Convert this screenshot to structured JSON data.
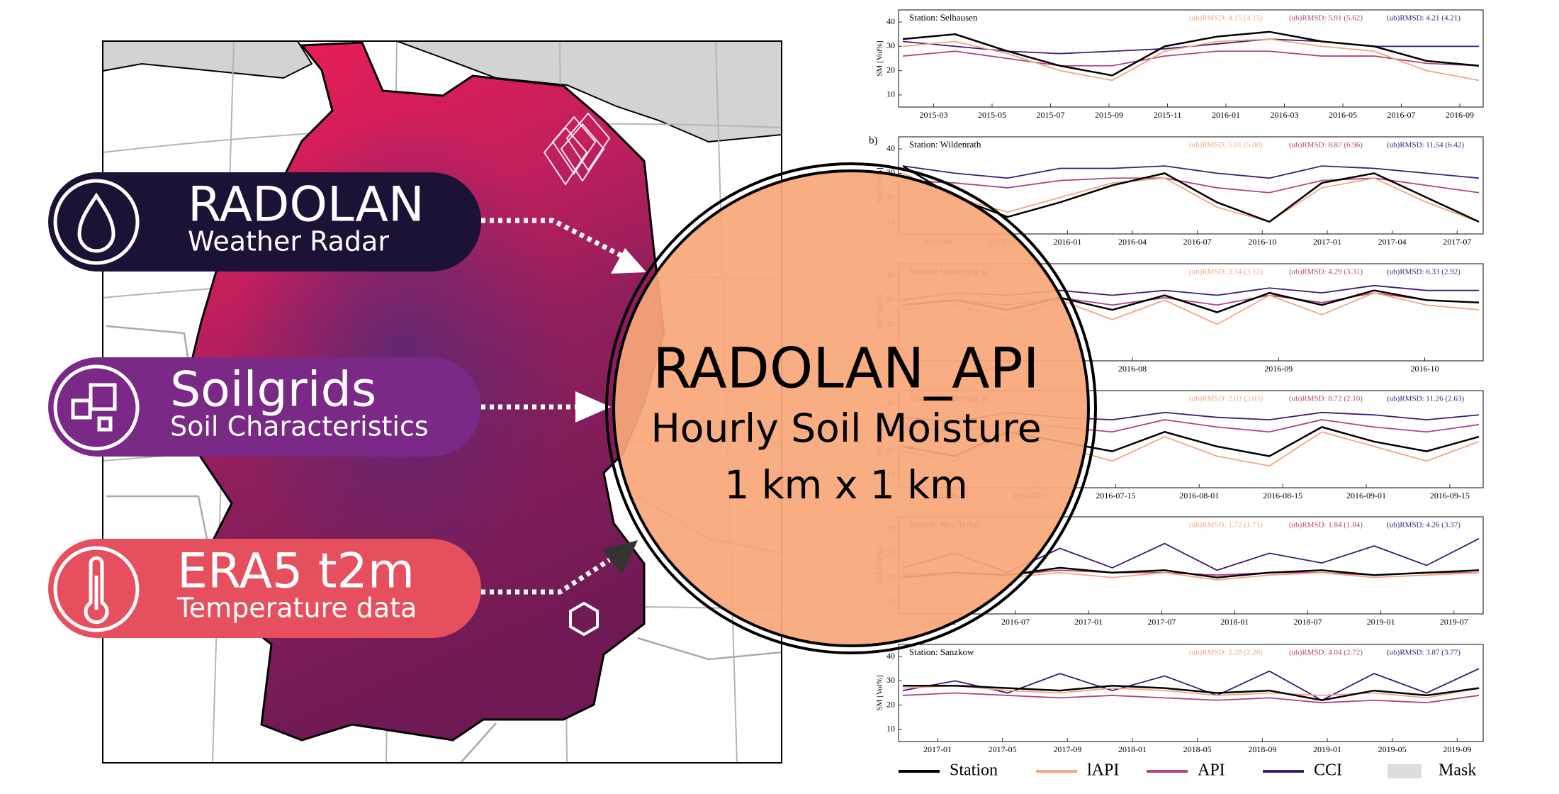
{
  "inputs": [
    {
      "title": "RADOLAN",
      "subtitle": "Weather Radar",
      "color": "#1c1236"
    },
    {
      "title": "Soilgrids",
      "subtitle": "Soil Characteristics",
      "color": "#7a2a86"
    },
    {
      "title": "ERA5 t2m",
      "subtitle": "Temperature data",
      "color": "#e6505e"
    }
  ],
  "output": {
    "title": "RADOLAN_API",
    "lines": [
      "Hourly Soil Moisture",
      "1 km x 1 km"
    ]
  },
  "legend": [
    {
      "name": "Station",
      "color": "#000000"
    },
    {
      "name": "lAPI",
      "color": "#f4a582"
    },
    {
      "name": "API",
      "color": "#b2447e"
    },
    {
      "name": "CCI",
      "color": "#3d1a78"
    },
    {
      "name": "Mask",
      "color": "#dddddd"
    }
  ],
  "ylabel": "SM [Vol%]",
  "ylim": [
    5,
    45
  ],
  "yticks": [
    10,
    20,
    30,
    40
  ],
  "panels": [
    {
      "station": "Station: Selhausen",
      "rmsd": [
        "(ub)RMSD: 4.15 (4.15)",
        "(ub)RMSD: 5.91 (5.62)",
        "(ub)RMSD: 4.21 (4.21)"
      ],
      "xticks": [
        "2015-03",
        "2015-05",
        "2015-07",
        "2015-09",
        "2015-11",
        "2016-01",
        "2016-03",
        "2016-05",
        "2016-07",
        "2016-09"
      ],
      "values": [
        [
          33,
          35,
          28,
          22,
          18,
          30,
          34,
          36,
          32,
          30,
          24,
          22
        ],
        [
          30,
          32,
          27,
          20,
          16,
          28,
          32,
          33,
          30,
          28,
          20,
          16
        ],
        [
          26,
          28,
          25,
          22,
          22,
          26,
          28,
          28,
          26,
          26,
          23,
          22
        ],
        [
          32,
          30,
          28,
          27,
          28,
          29,
          31,
          33,
          32,
          30,
          30,
          30
        ]
      ]
    },
    {
      "label": "b)",
      "station": "Station: Wildenrath",
      "rmsd": [
        "(ub)RMSD: 5.01 (5.00)",
        "(ub)RMSD: 8.87 (6.96)",
        "(ub)RMSD: 11.54 (6.42)"
      ],
      "xticks": [
        "2015-04",
        "2015-10",
        "2016-01",
        "2016-04",
        "2016-07",
        "2016-10",
        "2017-01",
        "2017-04",
        "2017-07"
      ],
      "values": [
        [
          33,
          20,
          12,
          18,
          25,
          30,
          18,
          10,
          26,
          30,
          20,
          10
        ],
        [
          30,
          20,
          14,
          20,
          26,
          28,
          16,
          10,
          24,
          28,
          18,
          10
        ],
        [
          27,
          26,
          24,
          27,
          28,
          28,
          24,
          22,
          27,
          28,
          25,
          22
        ],
        [
          33,
          30,
          28,
          32,
          32,
          33,
          30,
          28,
          33,
          32,
          30,
          28
        ]
      ]
    },
    {
      "station": "Station: Wallerfing a2",
      "rmsd": [
        "(ub)RMSD: 3.14 (3.12)",
        "(ub)RMSD: 4.29 (3.31)",
        "(ub)RMSD: 6.33 (2.92)"
      ],
      "xticks": [
        "2016-07",
        "2016-08",
        "2016-09",
        "2016-10"
      ],
      "values": [
        [
          28,
          30,
          26,
          31,
          26,
          32,
          25,
          33,
          28,
          34,
          30,
          29
        ],
        [
          26,
          28,
          22,
          30,
          22,
          30,
          20,
          32,
          24,
          33,
          28,
          26
        ],
        [
          28,
          30,
          28,
          31,
          28,
          31,
          28,
          32,
          29,
          33,
          30,
          29
        ],
        [
          30,
          33,
          32,
          34,
          32,
          34,
          32,
          35,
          33,
          36,
          34,
          34
        ]
      ]
    },
    {
      "station": "Station: Wallerfing pe",
      "rmsd": [
        "(ub)RMSD: 2.03 (2.03)",
        "(ub)RMSD: 8.72 (2.10)",
        "(ub)RMSD: 11.26 (2.63)"
      ],
      "xticks": [
        "2016-06-15",
        "2016-07-01",
        "2016-07-15",
        "2016-08-01",
        "2016-08-15",
        "2016-09-01",
        "2016-09-15"
      ],
      "values": [
        [
          22,
          18,
          28,
          24,
          20,
          28,
          22,
          18,
          30,
          24,
          20,
          26
        ],
        [
          20,
          16,
          28,
          22,
          16,
          26,
          18,
          14,
          28,
          22,
          16,
          24
        ],
        [
          30,
          28,
          32,
          30,
          28,
          33,
          30,
          28,
          33,
          30,
          28,
          31
        ],
        [
          34,
          32,
          36,
          34,
          33,
          36,
          34,
          33,
          36,
          35,
          33,
          35
        ]
      ]
    },
    {
      "station": "Station: Neu Tellin",
      "rmsd": [
        "(ub)RMSD: 1.72 (1.71)",
        "(ub)RMSD: 1.84 (1.84)",
        "(ub)RMSD: 4.26 (3.37)"
      ],
      "xticks": [
        "2016-01",
        "2016-07",
        "2017-01",
        "2017-07",
        "2018-01",
        "2018-07",
        "2019-01",
        "2019-07"
      ],
      "values": [
        [
          20,
          22,
          21,
          24,
          22,
          23,
          20,
          22,
          23,
          21,
          22,
          23
        ],
        [
          20,
          21,
          20,
          22,
          20,
          22,
          19,
          21,
          22,
          20,
          21,
          22
        ],
        [
          21,
          22,
          21,
          23,
          22,
          22,
          21,
          22,
          22,
          21,
          22,
          22
        ],
        [
          24,
          30,
          22,
          32,
          24,
          34,
          23,
          30,
          26,
          33,
          25,
          36
        ]
      ]
    },
    {
      "station": "Station: Sanzkow",
      "rmsd": [
        "(ub)RMSD: 2.28 (2.28)",
        "(ub)RMSD: 4.04 (2.72)",
        "(ub)RMSD: 3.87 (3.77)"
      ],
      "xticks": [
        "2017-01",
        "2017-05",
        "2017-09",
        "2018-01",
        "2018-05",
        "2018-09",
        "2019-01",
        "2019-05",
        "2019-09"
      ],
      "values": [
        [
          28,
          28,
          27,
          26,
          28,
          27,
          25,
          26,
          22,
          26,
          24,
          27
        ],
        [
          27,
          28,
          26,
          25,
          27,
          26,
          24,
          25,
          24,
          25,
          23,
          27
        ],
        [
          24,
          25,
          24,
          23,
          24,
          23,
          22,
          23,
          21,
          22,
          21,
          24
        ],
        [
          26,
          30,
          25,
          33,
          26,
          32,
          24,
          34,
          22,
          33,
          25,
          35
        ]
      ]
    }
  ]
}
